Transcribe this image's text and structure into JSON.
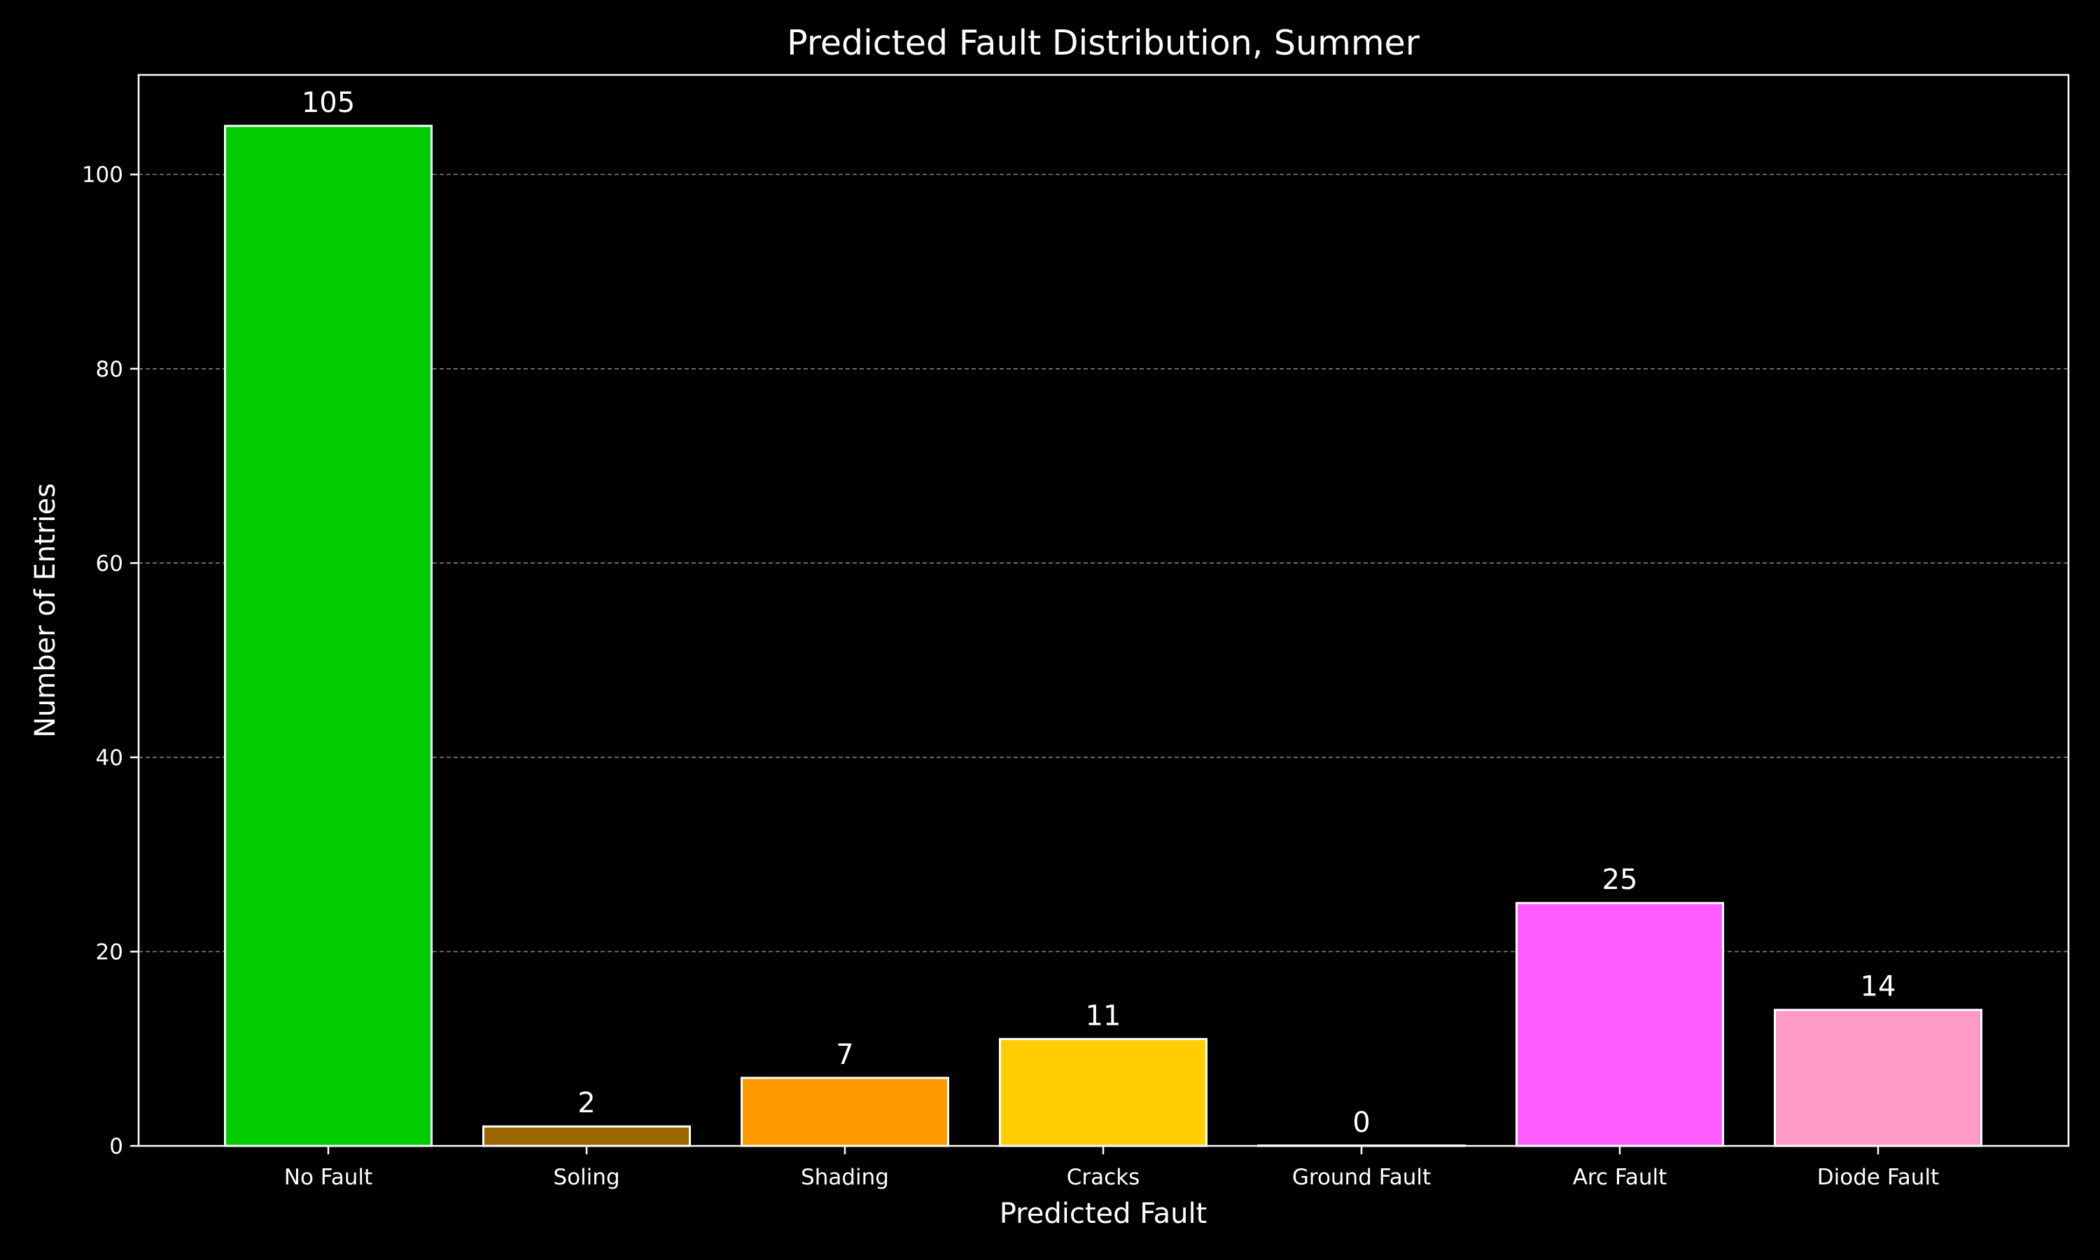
{
  "chart_data": {
    "type": "bar",
    "title": "Predicted Fault Distribution, Summer",
    "xlabel": "Predicted Fault",
    "ylabel": "Number of Entries",
    "categories": [
      "No Fault",
      "Soling",
      "Shading",
      "Cracks",
      "Ground Fault",
      "Arc Fault",
      "Diode Fault"
    ],
    "values": [
      105,
      2,
      7,
      11,
      0,
      25,
      14
    ],
    "colors": [
      "#00cc00",
      "#996600",
      "#ff9900",
      "#ffcc00",
      "#000000",
      "#ff5cff",
      "#ff99c8"
    ],
    "ylim": [
      0,
      110.25
    ],
    "yticks": [
      0,
      20,
      40,
      60,
      80,
      100
    ],
    "grid": "y-dashed",
    "background": "#000000",
    "foreground": "#ffffff",
    "bar_edge_color": "#ffffff",
    "grid_color": "#808080"
  }
}
